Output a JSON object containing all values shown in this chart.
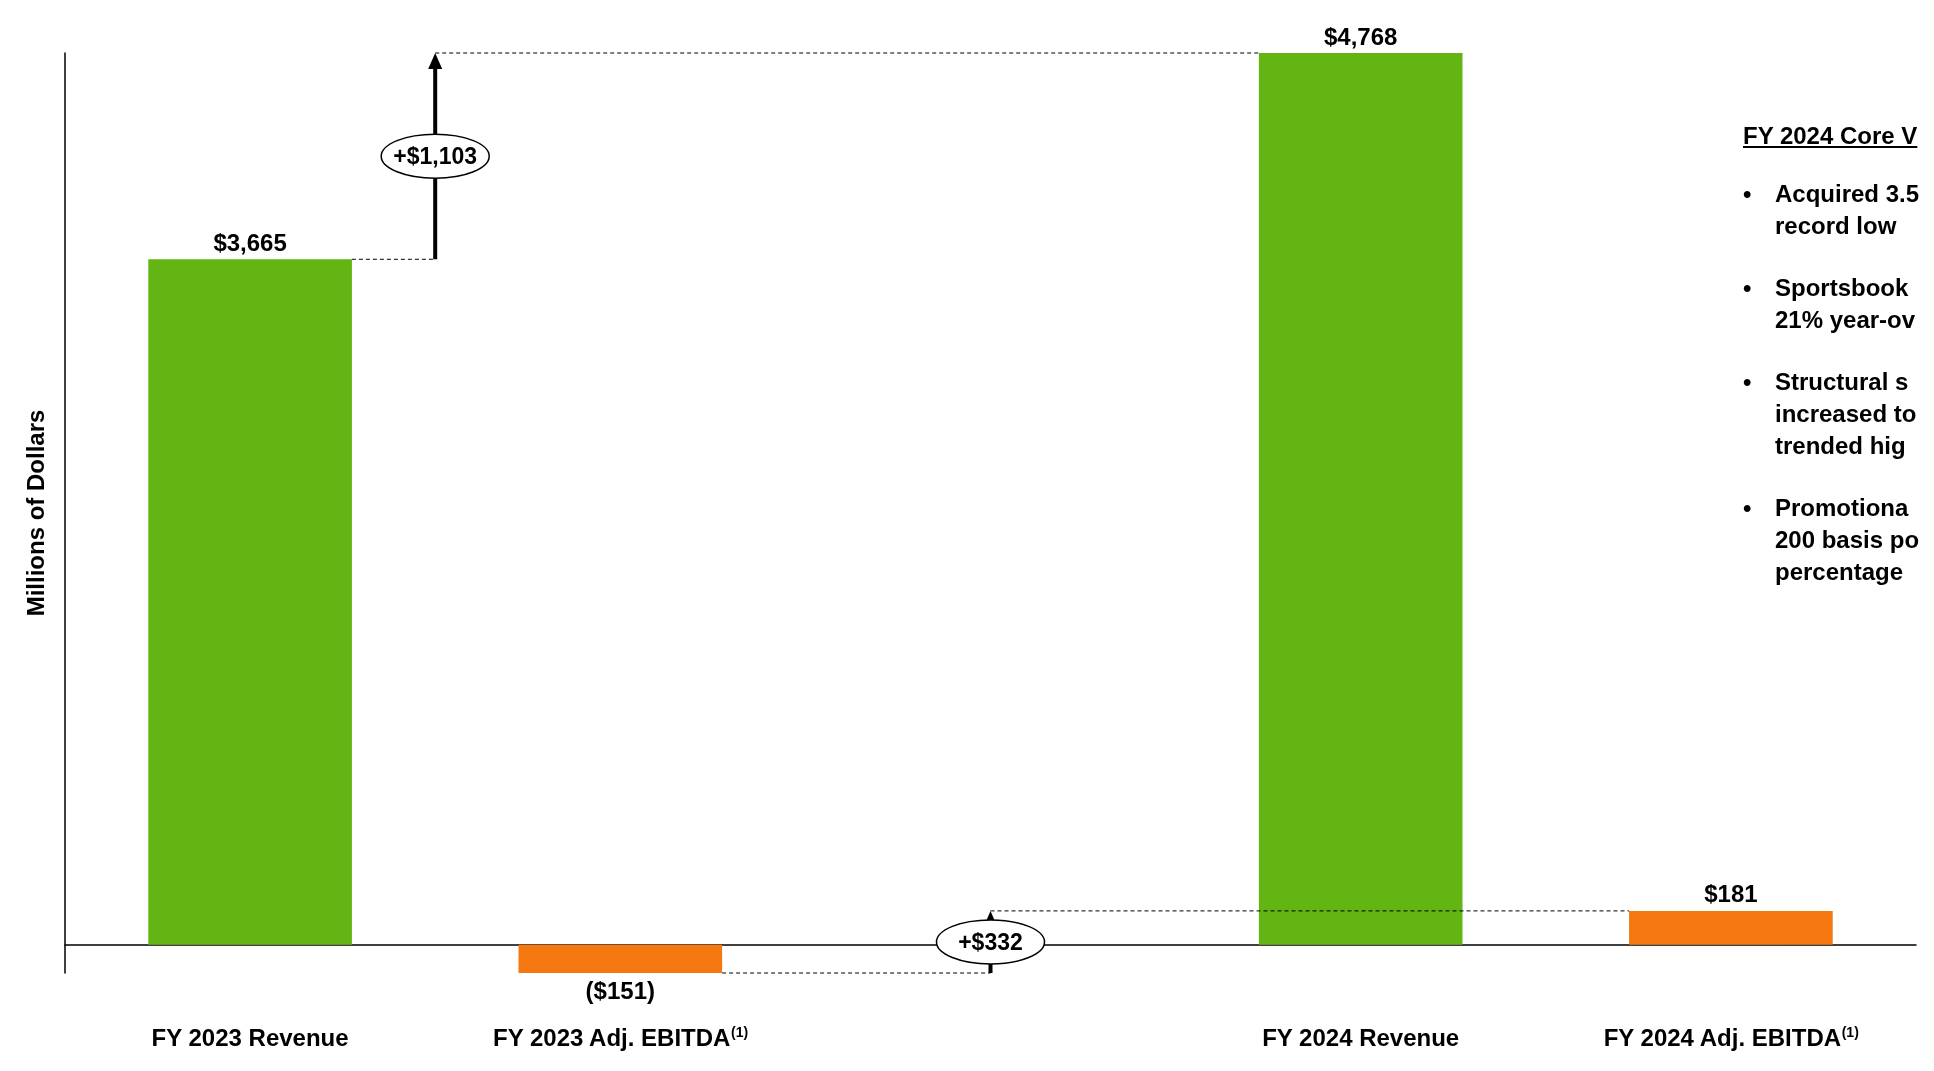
{
  "chart_data": {
    "type": "bar",
    "ylabel": "Millions of Dollars",
    "categories": [
      "FY 2023 Revenue",
      "FY 2023 Adj. EBITDA$^{(1)}$",
      null,
      "FY 2024 Revenue",
      "FY 2024 Adj. EBITDA$^{(1)}$"
    ],
    "values": [
      3665,
      -151,
      null,
      4768,
      181
    ],
    "colors": [
      "#62b512",
      "#f5770f",
      null,
      "#62b512",
      "#f5770f"
    ],
    "value_labels": [
      "$3,665",
      "($151)",
      null,
      "$4,768",
      "$181"
    ],
    "tick_labels": "x",
    "annotations": [
      "+$1,103",
      "+$332",
      "FY 2024 Core V",
      "• Acquired 3.5\nrecord low",
      "• Sportsbook\n21% year-ov",
      "• Structural s\nincreased to\ntrended hig",
      "• Promotiona\n200 basis po\npercentage"
    ]
  }
}
